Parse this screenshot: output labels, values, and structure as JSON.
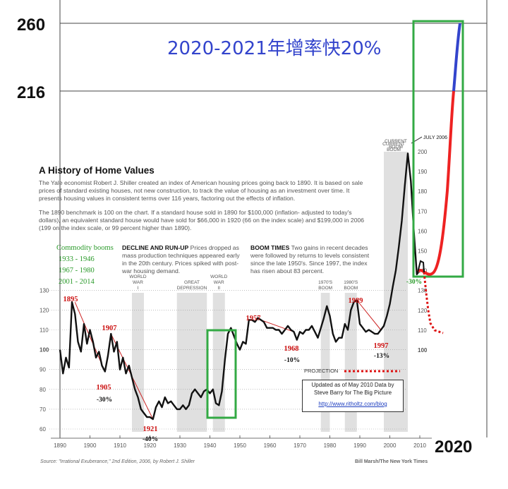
{
  "overlay": {
    "y_label_top": "260",
    "y_label_mid": "216",
    "x_label": "2020",
    "headline": "2020-2021年增率快20%"
  },
  "article": {
    "title": "A History of Home Values",
    "intro": "The Yale economist Robert J. Shiller created an index of American housing prices going back to 1890. It is based on sale prices of standard existing houses, not new construction, to track the value of housing as an investment over time. It presents housing values in consistent terms over 116 years, factoring out the effects of inflation.",
    "benchmark": "The 1890 benchmark is 100 on the chart. If a standard house sold in 1890 for $100,000 (inflation- adjusted to today's dollars), an equivalent standard house would have sold for $66,000 in 1920 (66 on the index scale) and $199,000 in 2006 (199 on the index scale, or 99 percent higher than 1890).",
    "decline_head": "DECLINE AND RUN-UP",
    "decline_text": "Prices dropped as mass production techniques appeared early in the 20th century. Prices spiked with post-war housing demand.",
    "boom_head": "BOOM TIMES",
    "boom_text": "Two gains in recent decades were followed by returns to levels consistent since the late 1950's. Since 1997, the index has risen about 83 percent.",
    "commodity_title": "Commodity booms",
    "commodity_1": "1933 - 1946",
    "commodity_2": "1967 - 1980",
    "commodity_3": "2001 - 2014",
    "projection": "PROJECTION",
    "note_1": "Updated as of May 2010 Data by",
    "note_2": "Steve Barry for The Big Picture",
    "note_link": "http://www.ritholtz.com/blog",
    "source": "Source: \"Irrational Exuberance,\" 2nd Edition, 2006, by Robert J. Shiller",
    "credit": "Bill Marsh/The New York Times",
    "current_boom": "CURRENT BOOM",
    "july_2006": "JULY 2006"
  },
  "colors": {
    "line": "#111111",
    "shade": "#e0e0e0",
    "trend": "#cc2222",
    "box": "#33aa44",
    "blue_seg": "#3344cc",
    "red_seg": "#ee2222",
    "projection": "#dd1111"
  },
  "chart_data": {
    "type": "line",
    "title": "A History of Home Values",
    "x_ticks": [
      "1890",
      "1900",
      "1910",
      "1920",
      "1930",
      "1940",
      "1950",
      "1960",
      "1970",
      "1980",
      "1990",
      "2000",
      "2010"
    ],
    "y_ticks_left": [
      "60",
      "70",
      "80",
      "90",
      "100",
      "110",
      "120",
      "130"
    ],
    "y_ticks_right": [
      "100",
      "110",
      "120",
      "130",
      "140",
      "150",
      "160",
      "170",
      "180",
      "190",
      "200"
    ],
    "ylim": [
      60,
      260
    ],
    "shaded_periods": [
      {
        "label": "WORLD WAR I",
        "range": [
          1914,
          1918
        ]
      },
      {
        "label": "GREAT DEPRESSION",
        "range": [
          1929,
          1939
        ]
      },
      {
        "label": "WORLD WAR II",
        "range": [
          1941,
          1945
        ]
      },
      {
        "label": "1970'S BOOM",
        "range": [
          1977,
          1980
        ]
      },
      {
        "label": "1980'S BOOM",
        "range": [
          1985,
          1989
        ]
      },
      {
        "label": "CURRENT BOOM",
        "range": [
          1998,
          2006
        ]
      }
    ],
    "series": [
      {
        "values": [
          [
            1890,
            100
          ],
          [
            1891,
            88
          ],
          [
            1892,
            96
          ],
          [
            1893,
            91
          ],
          [
            1894,
            124
          ],
          [
            1895,
            118
          ],
          [
            1896,
            104
          ],
          [
            1897,
            99
          ],
          [
            1898,
            113
          ],
          [
            1899,
            103
          ],
          [
            1900,
            110
          ],
          [
            1901,
            104
          ],
          [
            1902,
            96
          ],
          [
            1903,
            99
          ],
          [
            1904,
            92
          ],
          [
            1905,
            89
          ],
          [
            1906,
            97
          ],
          [
            1907,
            108
          ],
          [
            1908,
            99
          ],
          [
            1909,
            104
          ],
          [
            1910,
            90
          ],
          [
            1911,
            96
          ],
          [
            1912,
            88
          ],
          [
            1913,
            92
          ],
          [
            1914,
            86
          ],
          [
            1915,
            80
          ],
          [
            1916,
            76
          ],
          [
            1917,
            70
          ],
          [
            1918,
            68
          ],
          [
            1919,
            66
          ],
          [
            1920,
            66
          ],
          [
            1921,
            65
          ],
          [
            1922,
            71
          ],
          [
            1923,
            74
          ],
          [
            1924,
            71
          ],
          [
            1925,
            76
          ],
          [
            1926,
            73
          ],
          [
            1927,
            74
          ],
          [
            1928,
            72
          ],
          [
            1929,
            70
          ],
          [
            1930,
            70
          ],
          [
            1931,
            72
          ],
          [
            1932,
            70
          ],
          [
            1933,
            72
          ],
          [
            1934,
            78
          ],
          [
            1935,
            80
          ],
          [
            1936,
            78
          ],
          [
            1937,
            76
          ],
          [
            1938,
            79
          ],
          [
            1939,
            80
          ],
          [
            1940,
            78
          ],
          [
            1941,
            80
          ],
          [
            1942,
            73
          ],
          [
            1943,
            72
          ],
          [
            1944,
            79
          ],
          [
            1945,
            95
          ],
          [
            1946,
            108
          ],
          [
            1947,
            111
          ],
          [
            1948,
            107
          ],
          [
            1949,
            103
          ],
          [
            1950,
            100
          ],
          [
            1951,
            104
          ],
          [
            1952,
            103
          ],
          [
            1953,
            115
          ],
          [
            1954,
            115
          ],
          [
            1955,
            114
          ],
          [
            1956,
            116
          ],
          [
            1957,
            115
          ],
          [
            1958,
            114
          ],
          [
            1959,
            111
          ],
          [
            1960,
            111
          ],
          [
            1961,
            111
          ],
          [
            1962,
            110
          ],
          [
            1963,
            110
          ],
          [
            1964,
            108
          ],
          [
            1965,
            110
          ],
          [
            1966,
            112
          ],
          [
            1967,
            110
          ],
          [
            1968,
            109
          ],
          [
            1969,
            105
          ],
          [
            1970,
            109
          ],
          [
            1971,
            108
          ],
          [
            1972,
            110
          ],
          [
            1973,
            110
          ],
          [
            1974,
            112
          ],
          [
            1975,
            109
          ],
          [
            1976,
            106
          ],
          [
            1977,
            111
          ],
          [
            1978,
            116
          ],
          [
            1979,
            122
          ],
          [
            1980,
            117
          ],
          [
            1981,
            108
          ],
          [
            1982,
            104
          ],
          [
            1983,
            106
          ],
          [
            1984,
            106
          ],
          [
            1985,
            113
          ],
          [
            1986,
            110
          ],
          [
            1987,
            120
          ],
          [
            1988,
            124
          ],
          [
            1989,
            125
          ],
          [
            1990,
            113
          ],
          [
            1991,
            111
          ],
          [
            1992,
            109
          ],
          [
            1993,
            110
          ],
          [
            1994,
            109
          ],
          [
            1995,
            108
          ],
          [
            1996,
            108
          ],
          [
            1997,
            110
          ],
          [
            1998,
            112
          ],
          [
            1999,
            117
          ],
          [
            2000,
            123
          ],
          [
            2001,
            132
          ],
          [
            2002,
            140
          ],
          [
            2003,
            152
          ],
          [
            2004,
            165
          ],
          [
            2005,
            183
          ],
          [
            2006,
            199
          ],
          [
            2007,
            185
          ],
          [
            2008,
            160
          ],
          [
            2009,
            138
          ],
          [
            2010,
            140
          ]
        ]
      }
    ],
    "annotations": [
      {
        "year": 1895,
        "label": "1895"
      },
      {
        "year": 1907,
        "label": "1907"
      },
      {
        "year": 1905,
        "label": "1905",
        "change": "-30%"
      },
      {
        "year": 1921,
        "label": "1921",
        "change": "-40%"
      },
      {
        "year": 1957,
        "label": "1957"
      },
      {
        "year": 1968,
        "label": "1968",
        "change": "-10%"
      },
      {
        "year": 1989,
        "label": "1989"
      },
      {
        "year": 1997,
        "label": "1997",
        "change": "-13%"
      },
      {
        "year": 2010,
        "change": "-30%"
      }
    ]
  }
}
